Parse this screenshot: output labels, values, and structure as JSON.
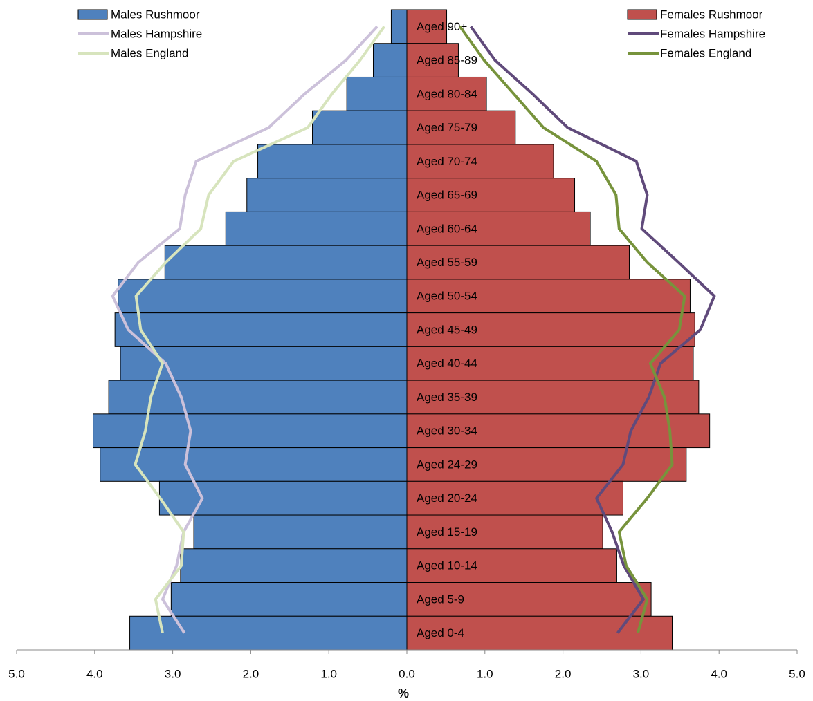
{
  "chart_data": {
    "type": "bar",
    "orientation": "horizontal",
    "x_label": "%",
    "categories": [
      "Aged 90+",
      "Aged 85-89",
      "Aged 80-84",
      "Aged 75-79",
      "Aged 70-74",
      "Aged 65-69",
      "Aged 60-64",
      "Aged 55-59",
      "Aged 50-54",
      "Aged 45-49",
      "Aged 40-44",
      "Aged 35-39",
      "Aged 30-34",
      "Aged 24-29",
      "Aged 20-24",
      "Aged 15-19",
      "Aged 10-14",
      "Aged 5-9",
      "Aged 0-4"
    ],
    "xlim": [
      -5,
      5
    ],
    "xticks": [
      {
        "value": -5,
        "label": "5.0"
      },
      {
        "value": -4,
        "label": "4.0"
      },
      {
        "value": -3,
        "label": "3.0"
      },
      {
        "value": -2,
        "label": "2.0"
      },
      {
        "value": -1,
        "label": "1.0"
      },
      {
        "value": 0,
        "label": "0.0"
      },
      {
        "value": 1,
        "label": "1.0"
      },
      {
        "value": 2,
        "label": "2.0"
      },
      {
        "value": 3,
        "label": "3.0"
      },
      {
        "value": 4,
        "label": "4.0"
      },
      {
        "value": 5,
        "label": "5.0"
      }
    ],
    "series": [
      {
        "name": "Males Rushmoor",
        "type": "bar",
        "color": "#4f81bd",
        "values": [
          -0.2,
          -0.43,
          -0.77,
          -1.21,
          -1.91,
          -2.05,
          -2.32,
          -3.1,
          -3.7,
          -3.74,
          -3.67,
          -3.82,
          -4.02,
          -3.93,
          -3.17,
          -2.73,
          -2.9,
          -3.02,
          -3.55
        ]
      },
      {
        "name": "Males Hampshire",
        "type": "line",
        "color": "#ccc1da",
        "values": [
          -0.38,
          -0.78,
          -1.31,
          -1.77,
          -2.7,
          -2.84,
          -2.91,
          -3.44,
          -3.77,
          -3.57,
          -3.09,
          -2.89,
          -2.77,
          -2.84,
          -2.62,
          -2.86,
          -2.95,
          -3.13,
          -2.85
        ]
      },
      {
        "name": "Males England",
        "type": "line",
        "color": "#d7e4bd",
        "values": [
          -0.29,
          -0.6,
          -0.96,
          -1.27,
          -2.22,
          -2.54,
          -2.64,
          -3.09,
          -3.47,
          -3.41,
          -3.13,
          -3.28,
          -3.35,
          -3.48,
          -3.16,
          -2.86,
          -2.89,
          -3.22,
          -3.13
        ]
      },
      {
        "name": "Females Rushmoor",
        "type": "bar",
        "color": "#c0504d",
        "values": [
          0.51,
          0.66,
          1.02,
          1.39,
          1.88,
          2.15,
          2.35,
          2.85,
          3.63,
          3.69,
          3.67,
          3.74,
          3.88,
          3.58,
          2.77,
          2.51,
          2.69,
          3.13,
          3.4
        ]
      },
      {
        "name": "Females Hampshire",
        "type": "line",
        "color": "#604a7b",
        "values": [
          0.82,
          1.13,
          1.61,
          2.06,
          2.94,
          3.08,
          3.01,
          3.48,
          3.94,
          3.76,
          3.25,
          3.1,
          2.87,
          2.77,
          2.43,
          2.63,
          2.78,
          3.03,
          2.7
        ]
      },
      {
        "name": "Females England",
        "type": "line",
        "color": "#77933c",
        "values": [
          0.68,
          0.99,
          1.37,
          1.75,
          2.43,
          2.68,
          2.72,
          3.08,
          3.56,
          3.49,
          3.12,
          3.3,
          3.37,
          3.4,
          3.08,
          2.72,
          2.81,
          3.08,
          2.96
        ]
      }
    ]
  }
}
